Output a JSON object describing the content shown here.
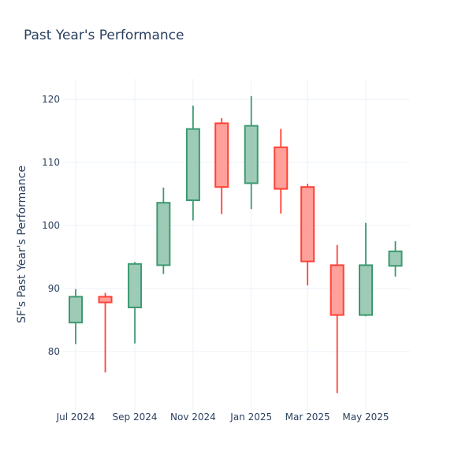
{
  "chart_data": {
    "type": "candlestick",
    "title": "Past Year's Performance",
    "xlabel": "",
    "ylabel": "SF's Past Year's Performance",
    "ylim": [
      71,
      123
    ],
    "yticks": [
      80,
      90,
      100,
      110,
      120
    ],
    "xticks": [
      {
        "label": "Jul 2024",
        "date": "2024-07-01"
      },
      {
        "label": "Sep 2024",
        "date": "2024-09-01"
      },
      {
        "label": "Nov 2024",
        "date": "2024-11-01"
      },
      {
        "label": "Jan 2025",
        "date": "2025-01-01"
      },
      {
        "label": "Mar 2025",
        "date": "2025-03-01"
      },
      {
        "label": "May 2025",
        "date": "2025-05-01"
      }
    ],
    "grid": true,
    "colors": {
      "increasing": "#3d9970",
      "decreasing": "#ff4136",
      "increasing_fill": "#9ecbb7",
      "decreasing_fill": "#ffa09a"
    },
    "candles": [
      {
        "date": "2024-07-01",
        "open": 84.6,
        "high": 89.9,
        "low": 81.2,
        "close": 88.7
      },
      {
        "date": "2024-08-01",
        "open": 88.7,
        "high": 89.3,
        "low": 76.7,
        "close": 87.8
      },
      {
        "date": "2024-09-01",
        "open": 87.0,
        "high": 94.2,
        "low": 81.3,
        "close": 93.9
      },
      {
        "date": "2024-10-01",
        "open": 93.7,
        "high": 106.0,
        "low": 92.3,
        "close": 103.6
      },
      {
        "date": "2024-11-01",
        "open": 104.0,
        "high": 119.0,
        "low": 100.8,
        "close": 115.3
      },
      {
        "date": "2024-12-01",
        "open": 116.2,
        "high": 117.0,
        "low": 101.8,
        "close": 106.1
      },
      {
        "date": "2025-01-01",
        "open": 106.7,
        "high": 120.5,
        "low": 102.6,
        "close": 115.8
      },
      {
        "date": "2025-02-01",
        "open": 112.4,
        "high": 115.3,
        "low": 101.9,
        "close": 105.8
      },
      {
        "date": "2025-03-01",
        "open": 106.1,
        "high": 106.6,
        "low": 90.5,
        "close": 94.3
      },
      {
        "date": "2025-04-01",
        "open": 93.7,
        "high": 96.9,
        "low": 73.4,
        "close": 85.8
      },
      {
        "date": "2025-05-01",
        "open": 85.8,
        "high": 100.4,
        "low": 85.6,
        "close": 93.7
      },
      {
        "date": "2025-06-01",
        "open": 93.6,
        "high": 97.5,
        "low": 91.9,
        "close": 95.9
      }
    ]
  }
}
